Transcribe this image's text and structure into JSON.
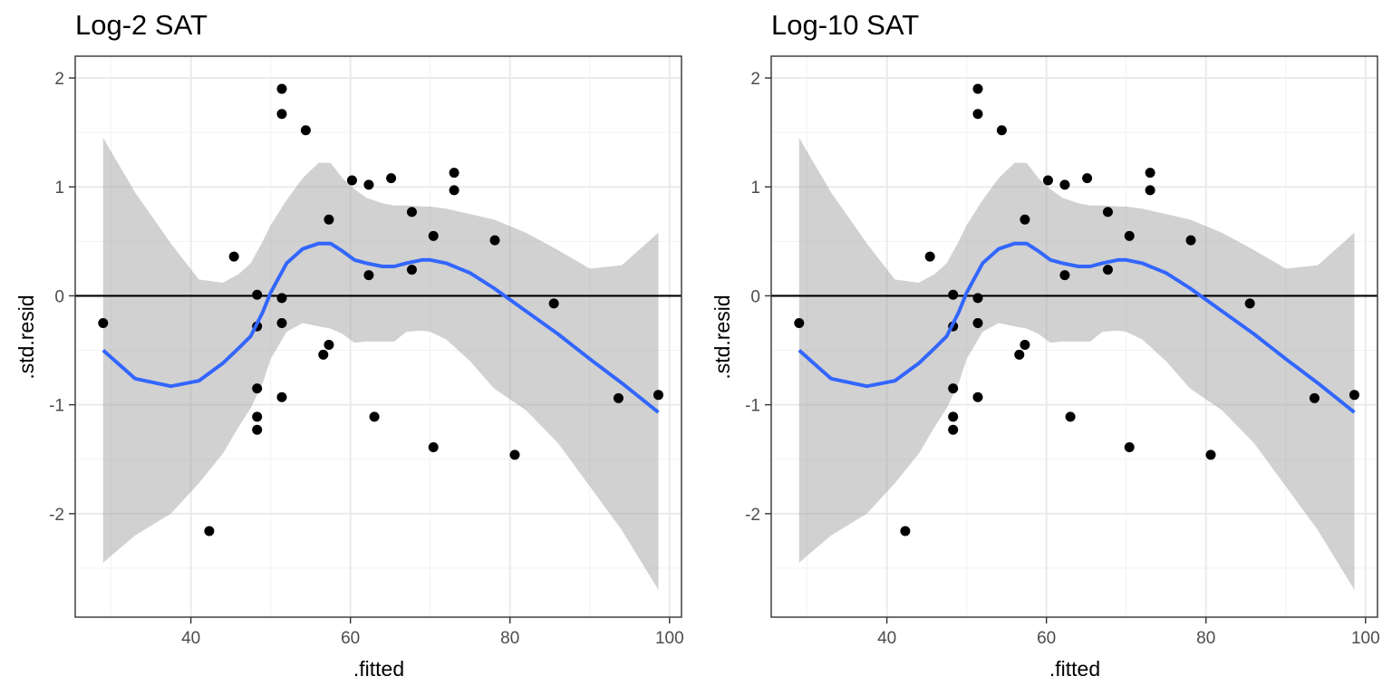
{
  "chart_data": [
    {
      "type": "scatter",
      "title": "Log-2 SAT",
      "xlabel": ".fitted",
      "ylabel": ".std.resid",
      "xlim": [
        25.5,
        101.5
      ],
      "ylim": [
        -2.95,
        2.2
      ],
      "xticks": [
        40,
        60,
        80,
        100
      ],
      "xtick_labels": [
        "40",
        "60",
        "80",
        100
      ],
      "yticks": [
        -2,
        -1,
        0,
        1,
        2
      ],
      "ytick_labels": [
        "-2",
        "-1",
        "0",
        "1",
        "2"
      ],
      "grid": true,
      "hline": 0,
      "points": [
        {
          "x": 29.0,
          "y": -0.25
        },
        {
          "x": 42.3,
          "y": -2.16
        },
        {
          "x": 45.4,
          "y": 0.36
        },
        {
          "x": 48.3,
          "y": 0.01
        },
        {
          "x": 48.3,
          "y": -0.28
        },
        {
          "x": 48.3,
          "y": -0.85
        },
        {
          "x": 48.3,
          "y": -1.11
        },
        {
          "x": 48.3,
          "y": -1.23
        },
        {
          "x": 51.4,
          "y": 1.9
        },
        {
          "x": 51.4,
          "y": 1.67
        },
        {
          "x": 51.4,
          "y": -0.02
        },
        {
          "x": 51.4,
          "y": -0.25
        },
        {
          "x": 51.4,
          "y": -0.93
        },
        {
          "x": 54.4,
          "y": 1.52
        },
        {
          "x": 56.6,
          "y": -0.54
        },
        {
          "x": 57.3,
          "y": 0.7
        },
        {
          "x": 57.3,
          "y": -0.45
        },
        {
          "x": 60.2,
          "y": 1.06
        },
        {
          "x": 62.3,
          "y": 1.02
        },
        {
          "x": 62.3,
          "y": 0.19
        },
        {
          "x": 63.0,
          "y": -1.11
        },
        {
          "x": 65.1,
          "y": 1.08
        },
        {
          "x": 67.7,
          "y": 0.77
        },
        {
          "x": 67.7,
          "y": 0.24
        },
        {
          "x": 70.4,
          "y": 0.55
        },
        {
          "x": 70.4,
          "y": -1.39
        },
        {
          "x": 73.0,
          "y": 1.13
        },
        {
          "x": 73.0,
          "y": 0.97
        },
        {
          "x": 78.1,
          "y": 0.51
        },
        {
          "x": 80.6,
          "y": -1.46
        },
        {
          "x": 85.5,
          "y": -0.07
        },
        {
          "x": 93.6,
          "y": -0.94
        },
        {
          "x": 98.6,
          "y": -0.91
        }
      ],
      "smooth": {
        "color": "#3366FF",
        "x": [
          29.0,
          33.0,
          37.5,
          41.0,
          44.0,
          46.0,
          47.5,
          49.0,
          50.0,
          52.0,
          54.0,
          56.0,
          57.5,
          59.0,
          60.5,
          62.0,
          64.0,
          65.5,
          67.0,
          69.0,
          70.0,
          72.0,
          75.0,
          78.0,
          82.0,
          86.0,
          90.0,
          94.0,
          98.6
        ],
        "y": [
          -0.5,
          -0.76,
          -0.83,
          -0.78,
          -0.62,
          -0.48,
          -0.37,
          -0.15,
          0.03,
          0.3,
          0.43,
          0.48,
          0.48,
          0.41,
          0.33,
          0.3,
          0.27,
          0.27,
          0.3,
          0.33,
          0.33,
          0.3,
          0.21,
          0.07,
          -0.14,
          -0.35,
          -0.58,
          -0.8,
          -1.07
        ],
        "ci_upper": [
          1.45,
          0.95,
          0.48,
          0.15,
          0.12,
          0.2,
          0.3,
          0.5,
          0.65,
          0.88,
          1.08,
          1.22,
          1.22,
          1.08,
          0.98,
          0.9,
          0.85,
          0.83,
          0.83,
          0.82,
          0.82,
          0.8,
          0.75,
          0.7,
          0.58,
          0.42,
          0.25,
          0.28,
          0.58
        ],
        "ci_lower": [
          -2.45,
          -2.2,
          -2.0,
          -1.72,
          -1.45,
          -1.2,
          -1.03,
          -0.8,
          -0.58,
          -0.33,
          -0.25,
          -0.28,
          -0.3,
          -0.35,
          -0.43,
          -0.42,
          -0.42,
          -0.42,
          -0.33,
          -0.32,
          -0.33,
          -0.4,
          -0.6,
          -0.85,
          -1.05,
          -1.35,
          -1.75,
          -2.15,
          -2.7
        ]
      },
      "colors": {
        "ribbon": "#999999",
        "points": "#000000",
        "hline": "#000000",
        "panel_border": "#333333",
        "grid_major": "#EBEBEB"
      }
    },
    {
      "type": "scatter",
      "title": "Log-10 SAT",
      "xlabel": ".fitted",
      "ylabel": ".std.resid",
      "xlim": [
        25.5,
        101.5
      ],
      "ylim": [
        -2.95,
        2.2
      ],
      "xticks": [
        40,
        60,
        80,
        100
      ],
      "xtick_labels": [
        "40",
        "60",
        "80",
        "100"
      ],
      "yticks": [
        -2,
        -1,
        0,
        1,
        2
      ],
      "ytick_labels": [
        "-2",
        "-1",
        "0",
        "1",
        "2"
      ],
      "grid": true,
      "hline": 0,
      "points": [
        {
          "x": 29.0,
          "y": -0.25
        },
        {
          "x": 42.3,
          "y": -2.16
        },
        {
          "x": 45.4,
          "y": 0.36
        },
        {
          "x": 48.3,
          "y": 0.01
        },
        {
          "x": 48.3,
          "y": -0.28
        },
        {
          "x": 48.3,
          "y": -0.85
        },
        {
          "x": 48.3,
          "y": -1.11
        },
        {
          "x": 48.3,
          "y": -1.23
        },
        {
          "x": 51.4,
          "y": 1.9
        },
        {
          "x": 51.4,
          "y": 1.67
        },
        {
          "x": 51.4,
          "y": -0.02
        },
        {
          "x": 51.4,
          "y": -0.25
        },
        {
          "x": 51.4,
          "y": -0.93
        },
        {
          "x": 54.4,
          "y": 1.52
        },
        {
          "x": 56.6,
          "y": -0.54
        },
        {
          "x": 57.3,
          "y": 0.7
        },
        {
          "x": 57.3,
          "y": -0.45
        },
        {
          "x": 60.2,
          "y": 1.06
        },
        {
          "x": 62.3,
          "y": 1.02
        },
        {
          "x": 62.3,
          "y": 0.19
        },
        {
          "x": 63.0,
          "y": -1.11
        },
        {
          "x": 65.1,
          "y": 1.08
        },
        {
          "x": 67.7,
          "y": 0.77
        },
        {
          "x": 67.7,
          "y": 0.24
        },
        {
          "x": 70.4,
          "y": 0.55
        },
        {
          "x": 70.4,
          "y": -1.39
        },
        {
          "x": 73.0,
          "y": 1.13
        },
        {
          "x": 73.0,
          "y": 0.97
        },
        {
          "x": 78.1,
          "y": 0.51
        },
        {
          "x": 80.6,
          "y": -1.46
        },
        {
          "x": 85.5,
          "y": -0.07
        },
        {
          "x": 93.6,
          "y": -0.94
        },
        {
          "x": 98.6,
          "y": -0.91
        }
      ],
      "smooth": {
        "color": "#3366FF",
        "x": [
          29.0,
          33.0,
          37.5,
          41.0,
          44.0,
          46.0,
          47.5,
          49.0,
          50.0,
          52.0,
          54.0,
          56.0,
          57.5,
          59.0,
          60.5,
          62.0,
          64.0,
          65.5,
          67.0,
          69.0,
          70.0,
          72.0,
          75.0,
          78.0,
          82.0,
          86.0,
          90.0,
          94.0,
          98.6
        ],
        "y": [
          -0.5,
          -0.76,
          -0.83,
          -0.78,
          -0.62,
          -0.48,
          -0.37,
          -0.15,
          0.03,
          0.3,
          0.43,
          0.48,
          0.48,
          0.41,
          0.33,
          0.3,
          0.27,
          0.27,
          0.3,
          0.33,
          0.33,
          0.3,
          0.21,
          0.07,
          -0.14,
          -0.35,
          -0.58,
          -0.8,
          -1.07
        ],
        "ci_upper": [
          1.45,
          0.95,
          0.48,
          0.15,
          0.12,
          0.2,
          0.3,
          0.5,
          0.65,
          0.88,
          1.08,
          1.22,
          1.22,
          1.08,
          0.98,
          0.9,
          0.85,
          0.83,
          0.83,
          0.82,
          0.82,
          0.8,
          0.75,
          0.7,
          0.58,
          0.42,
          0.25,
          0.28,
          0.58
        ],
        "ci_lower": [
          -2.45,
          -2.2,
          -2.0,
          -1.72,
          -1.45,
          -1.2,
          -1.03,
          -0.8,
          -0.58,
          -0.33,
          -0.25,
          -0.28,
          -0.3,
          -0.35,
          -0.43,
          -0.42,
          -0.42,
          -0.42,
          -0.33,
          -0.32,
          -0.33,
          -0.4,
          -0.6,
          -0.85,
          -1.05,
          -1.35,
          -1.75,
          -2.15,
          -2.7
        ]
      },
      "colors": {
        "ribbon": "#999999",
        "points": "#000000",
        "hline": "#000000",
        "panel_border": "#333333",
        "grid_major": "#EBEBEB"
      }
    }
  ]
}
